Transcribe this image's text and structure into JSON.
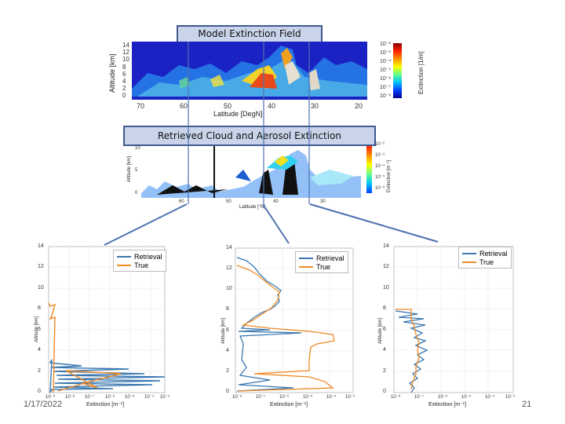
{
  "slide": {
    "date": "1/17/2022",
    "page_number": "21"
  },
  "top_panel": {
    "title": "Model Extinction Field",
    "ylabel": "Altitude [km]",
    "xlabel": "Latitude [DegN]",
    "y_ticks": [
      "14",
      "12",
      "10",
      "8",
      "6",
      "4",
      "2",
      "0"
    ],
    "x_ticks": [
      "70",
      "60",
      "50",
      "40",
      "30",
      "20"
    ],
    "colorbar_label": "Extinction [1/m]",
    "colorbar_ticks": [
      "10⁻²",
      "10⁻³",
      "10⁻⁴",
      "10⁻⁵",
      "10⁻⁶",
      "10⁻⁷",
      "10⁻⁸"
    ]
  },
  "middle_panel": {
    "title": "Retrieved Cloud and Aerosol Extinction",
    "ylabel": "Altitude [km]",
    "xlabel": "Latitude [°N]",
    "y_ticks": [
      "10",
      "5",
      "0"
    ],
    "x_ticks": [
      "60",
      "50",
      "40",
      "30"
    ],
    "colorbar_label": "Extinction [m⁻¹]",
    "colorbar_ticks": [
      "10⁻²",
      "10⁻³",
      "10⁻⁴",
      "10⁻⁵",
      "10⁻⁶"
    ]
  },
  "profiles": [
    {
      "legend": [
        "Retrieval",
        "True"
      ],
      "xlabel": "Extinction [m⁻¹]",
      "ylabel": "Altitude [km]",
      "y_ticks": [
        "14",
        "12",
        "10",
        "8",
        "6",
        "4",
        "2",
        "0"
      ],
      "x_ticks": [
        "10⁻⁹",
        "10⁻⁸",
        "10⁻⁷",
        "10⁻⁶",
        "10⁻⁵",
        "10⁻⁴",
        "10⁻³"
      ]
    },
    {
      "legend": [
        "Retrieval",
        "True"
      ],
      "xlabel": "Extinction [m⁻¹]",
      "ylabel": "Altitude [km]",
      "y_ticks": [
        "14",
        "12",
        "10",
        "8",
        "6",
        "4",
        "2",
        "0"
      ],
      "x_ticks": [
        "10⁻⁸",
        "10⁻⁷",
        "10⁻⁶",
        "10⁻⁵",
        "10⁻⁴",
        "10⁻³"
      ]
    },
    {
      "legend": [
        "Retrieval",
        "True"
      ],
      "xlabel": "Extinction [m⁻¹]",
      "ylabel": "Altitude [km]",
      "y_ticks": [
        "14",
        "12",
        "10",
        "8",
        "6",
        "4",
        "2",
        "0"
      ],
      "x_ticks": [
        "10⁻⁸",
        "10⁻⁷",
        "10⁻⁶",
        "10⁻⁵",
        "10⁻⁴",
        "10⁻³"
      ]
    }
  ],
  "colors": {
    "retrieval": "#3b78b0",
    "true": "#f08a24",
    "banner_fill": "#c9d3ea",
    "banner_border": "#3f5b8f"
  }
}
